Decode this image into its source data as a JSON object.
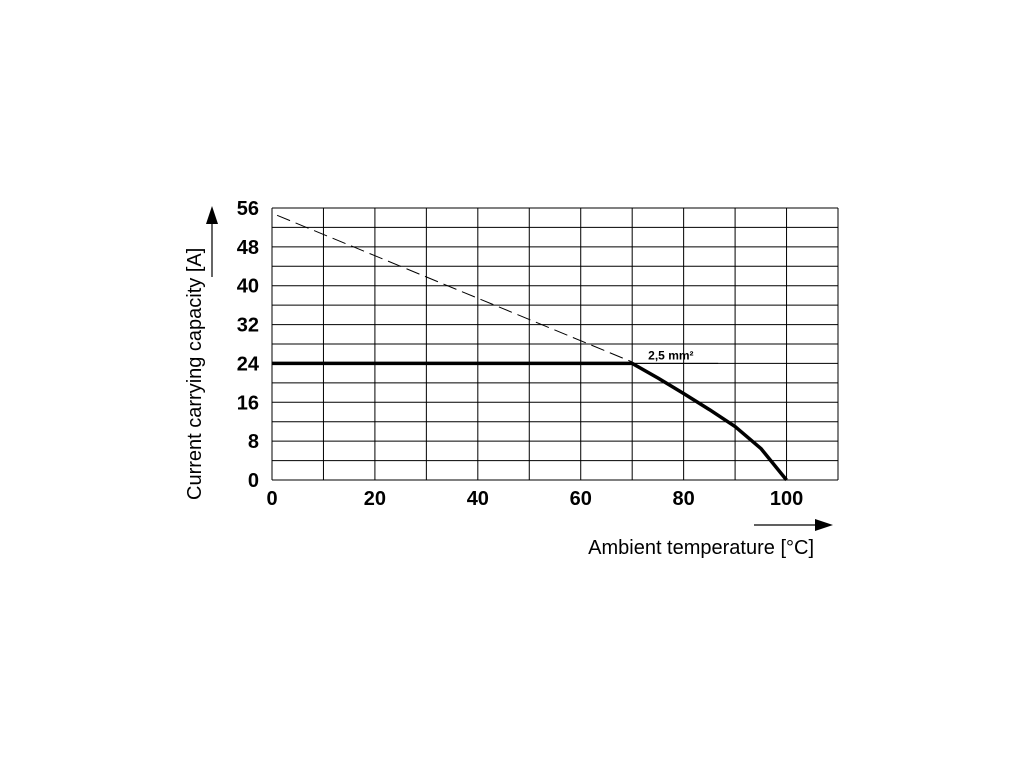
{
  "chart_data": {
    "type": "line",
    "title": "",
    "xlabel": "Ambient temperature [°C]",
    "ylabel": "Current carrying capacity [A]",
    "xlim": [
      0,
      110
    ],
    "ylim": [
      0,
      56
    ],
    "x_ticks": [
      0,
      20,
      40,
      60,
      80,
      100
    ],
    "y_ticks": [
      0,
      8,
      16,
      24,
      32,
      40,
      48,
      56
    ],
    "x_grid_step": 10,
    "y_grid_step": 4,
    "grid": true,
    "series": [
      {
        "name": "2,5 mm²",
        "style": "solid",
        "x": [
          0,
          70,
          75,
          80,
          85,
          90,
          95,
          100
        ],
        "y": [
          24,
          24,
          21,
          17.8,
          14.5,
          11,
          6.5,
          0
        ]
      },
      {
        "name": "",
        "style": "dashed",
        "x": [
          1,
          70
        ],
        "y": [
          54.5,
          24.3
        ]
      }
    ]
  }
}
